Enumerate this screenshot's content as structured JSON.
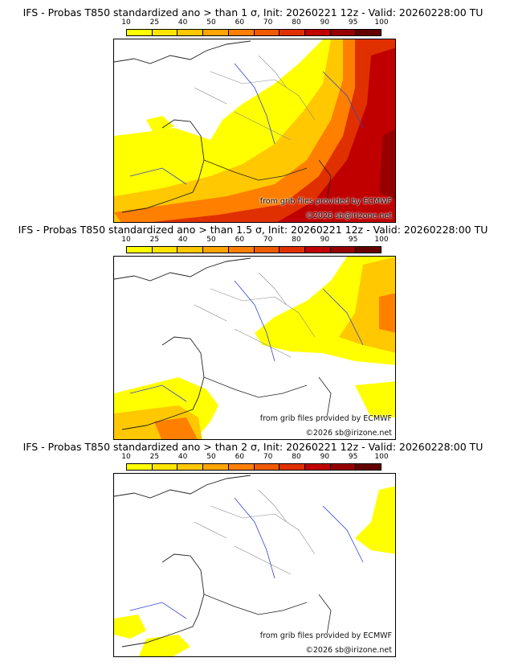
{
  "colorbar": {
    "ticks": [
      "10",
      "25",
      "40",
      "50",
      "60",
      "70",
      "80",
      "90",
      "95",
      "100"
    ],
    "colors": [
      "#ffff00",
      "#ffe600",
      "#ffc800",
      "#ffa500",
      "#ff7f00",
      "#f05a00",
      "#e03000",
      "#c00000",
      "#960000",
      "#640000"
    ]
  },
  "credits": {
    "source": "from grib files provided by ECMWF",
    "copyright": "©2026 sb@irizone.net"
  },
  "panels": [
    {
      "title": "IFS - Probas T850  standardized ano > than 1 σ, Init: 20260221 12z - Valid: 20260228:00 TU",
      "threshold": "1 σ"
    },
    {
      "title": "IFS - Probas T850  standardized ano > than 1.5 σ, Init: 20260221 12z - Valid: 20260228:00 TU",
      "threshold": "1.5 σ"
    },
    {
      "title": "IFS - Probas T850  standardized ano > than 2 σ, Init: 20260221 12z - Valid: 20260228:00 TU",
      "threshold": "2 σ"
    }
  ]
}
